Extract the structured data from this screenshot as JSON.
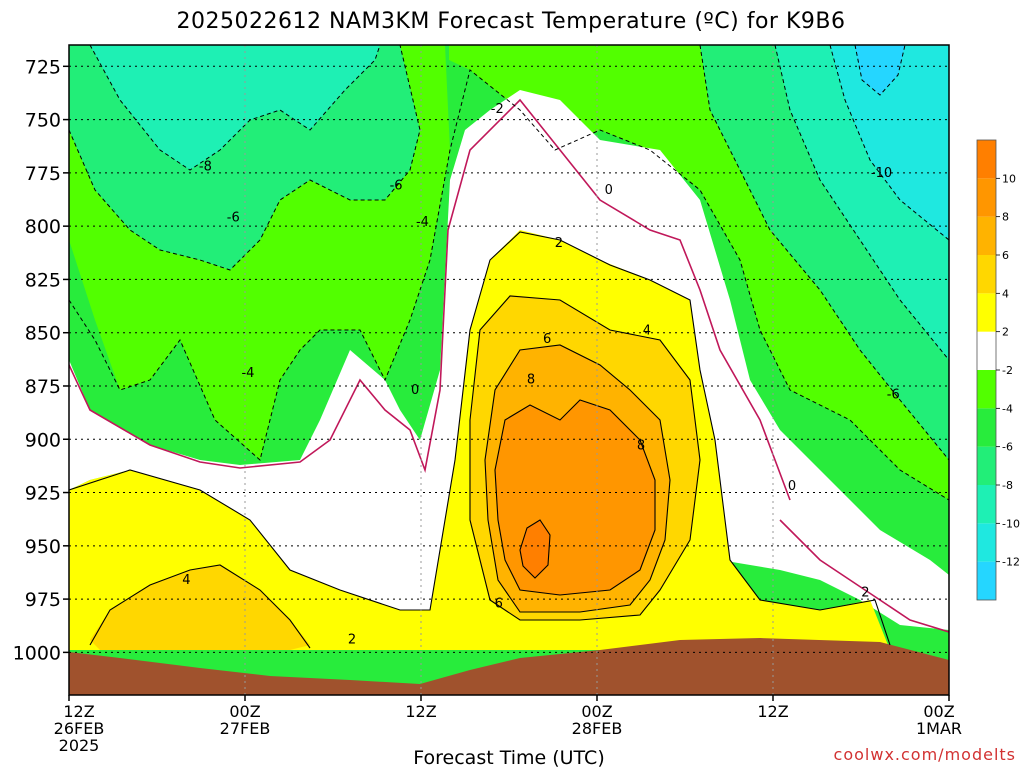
{
  "chart_data": {
    "type": "heatmap",
    "title": "2025022612 NAM3KM Forecast Temperature (ºC) for K9B6",
    "xlabel": "Forecast Time (UTC)",
    "ylabel": "",
    "credit": "coolwx.com/modelts",
    "x_range_hours": [
      0,
      60
    ],
    "y_range_mb": [
      1020,
      715
    ],
    "x_ticks": [
      {
        "hour": 0,
        "lines": [
          "12Z",
          "26FEB",
          "2025"
        ]
      },
      {
        "hour": 12,
        "lines": [
          "00Z",
          "27FEB"
        ]
      },
      {
        "hour": 24,
        "lines": [
          "12Z"
        ]
      },
      {
        "hour": 36,
        "lines": [
          "00Z",
          "28FEB"
        ]
      },
      {
        "hour": 48,
        "lines": [
          "12Z"
        ]
      },
      {
        "hour": 60,
        "lines": [
          "00Z",
          "1MAR"
        ]
      }
    ],
    "y_ticks": [
      725,
      750,
      775,
      800,
      825,
      850,
      875,
      900,
      925,
      950,
      975,
      1000
    ],
    "colorbar": {
      "levels": [
        -14,
        -12,
        -10,
        -8,
        -6,
        -4,
        -2,
        2,
        4,
        6,
        8,
        10,
        12
      ],
      "labels": [
        "-12",
        "-10",
        "-8",
        "-6",
        "-4",
        "-2",
        "2",
        "4",
        "6",
        "8",
        "10"
      ],
      "colors": [
        "#25d6ff",
        "#1fe8e0",
        "#1ef0b4",
        "#22ee78",
        "#28ec3c",
        "#52ff00",
        "#ffffff",
        "#ffff00",
        "#ffd700",
        "#ffb300",
        "#ff9600",
        "#ff7f00"
      ]
    },
    "surface_color": "#a0522d",
    "contour_labels": [
      {
        "text": "-2",
        "hour": 29.2,
        "mb": 745
      },
      {
        "text": "0",
        "hour": 36.8,
        "mb": 783
      },
      {
        "text": "2",
        "hour": 33.4,
        "mb": 808
      },
      {
        "text": "-6",
        "hour": 11.2,
        "mb": 796
      },
      {
        "text": "-8",
        "hour": 9.3,
        "mb": 772
      },
      {
        "text": "-6",
        "hour": 22.3,
        "mb": 781
      },
      {
        "text": "-4",
        "hour": 24.1,
        "mb": 798
      },
      {
        "text": "-4",
        "hour": 12.2,
        "mb": 869
      },
      {
        "text": "0",
        "hour": 23.6,
        "mb": 877
      },
      {
        "text": "6",
        "hour": 32.6,
        "mb": 853
      },
      {
        "text": "4",
        "hour": 39.4,
        "mb": 849
      },
      {
        "text": "8",
        "hour": 31.5,
        "mb": 872
      },
      {
        "text": "8",
        "hour": 39.0,
        "mb": 903
      },
      {
        "text": "-10",
        "hour": 55.4,
        "mb": 775
      },
      {
        "text": "-6",
        "hour": 56.2,
        "mb": 879
      },
      {
        "text": "0",
        "hour": 49.3,
        "mb": 922
      },
      {
        "text": "2",
        "hour": 54.3,
        "mb": 972
      },
      {
        "text": "4",
        "hour": 8.0,
        "mb": 966
      },
      {
        "text": "6",
        "hour": 29.3,
        "mb": 977
      },
      {
        "text": "2",
        "hour": 19.3,
        "mb": 994
      }
    ]
  }
}
